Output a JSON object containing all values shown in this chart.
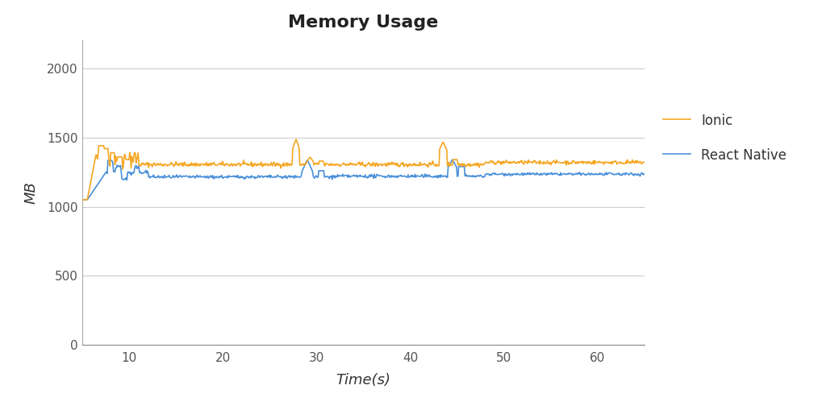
{
  "title": "Memory Usage",
  "xlabel": "Time(s)",
  "ylabel": "MB",
  "xlim": [
    5,
    65
  ],
  "ylim": [
    0,
    2200
  ],
  "yticks": [
    0,
    500,
    1000,
    1500,
    2000
  ],
  "xticks": [
    10,
    20,
    30,
    40,
    50,
    60
  ],
  "ionic_color": "#F5A623",
  "react_color": "#4A90D9",
  "grid_color": "#cccccc",
  "background_color": "#ffffff",
  "legend_ionic": "Ionic",
  "legend_react": "React Native",
  "title_fontsize": 16,
  "label_fontsize": 13,
  "tick_fontsize": 11
}
